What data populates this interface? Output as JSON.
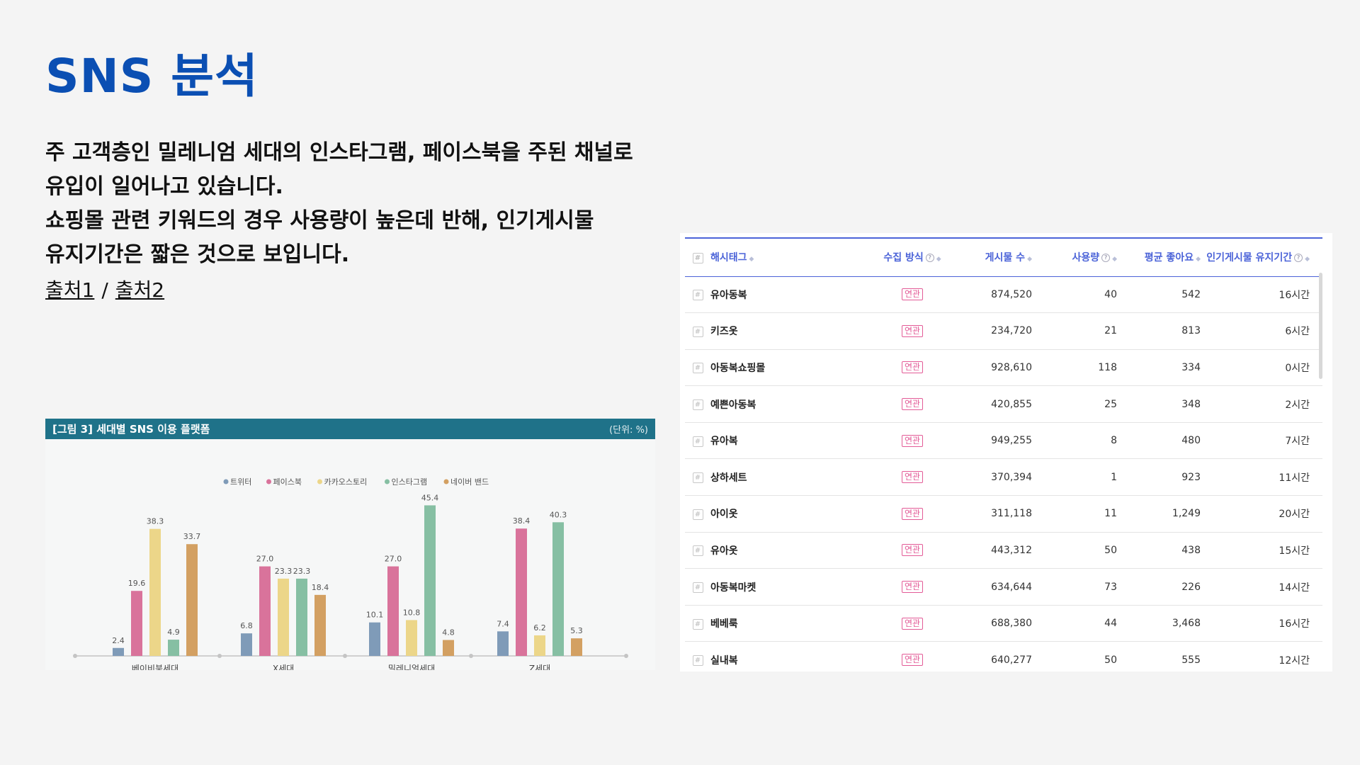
{
  "title": "SNS 분석",
  "description": [
    "주 고객층인 밀레니엄 세대의 인스타그램, 페이스북을 주된 채널로",
    "유입이 일어나고 있습니다.",
    "쇼핑몰 관련 키워드의 경우 사용량이 높은데 반해, 인기게시물",
    "유지기간은 짧은 것으로 보입니다."
  ],
  "sources": {
    "link1": "출처1",
    "separator": "/",
    "link2": "출처2"
  },
  "chart_header": {
    "title": "[그림 3]  세대별 SNS 이용 플랫폼",
    "unit": "(단위: %)"
  },
  "chart_data": {
    "type": "bar",
    "categories": [
      "베이비붐세대",
      "X세대",
      "밀레니얼세대",
      "Z세대"
    ],
    "series": [
      {
        "name": "트위터",
        "color": "#7f9bb8",
        "values": [
          2.4,
          6.8,
          10.1,
          7.4
        ]
      },
      {
        "name": "페이스북",
        "color": "#d9739b",
        "values": [
          19.6,
          27.0,
          27.0,
          38.4
        ]
      },
      {
        "name": "카카오스토리",
        "color": "#ecd689",
        "values": [
          38.3,
          23.3,
          10.8,
          6.2
        ]
      },
      {
        "name": "인스타그램",
        "color": "#86bfa3",
        "values": [
          4.9,
          23.3,
          45.4,
          40.3
        ]
      },
      {
        "name": "네이버 밴드",
        "color": "#d3a062",
        "values": [
          33.7,
          18.4,
          4.8,
          5.3
        ]
      }
    ],
    "legend": "top-center",
    "ylim": [
      0,
      50
    ]
  },
  "table": {
    "headers": {
      "idx": "#",
      "hashtag": "해시태그",
      "method": "수집 방식",
      "posts": "게시물 수",
      "usage": "사용량",
      "likes": "평균 좋아요",
      "duration": "인기게시물 유지기간"
    },
    "rows": [
      {
        "tag": "유아동복",
        "method": "연관",
        "posts": "874,520",
        "usage": "40",
        "likes": "542",
        "duration": "16시간"
      },
      {
        "tag": "키즈옷",
        "method": "연관",
        "posts": "234,720",
        "usage": "21",
        "likes": "813",
        "duration": "6시간"
      },
      {
        "tag": "아동복쇼핑몰",
        "method": "연관",
        "posts": "928,610",
        "usage": "118",
        "likes": "334",
        "duration": "0시간"
      },
      {
        "tag": "예쁜아동복",
        "method": "연관",
        "posts": "420,855",
        "usage": "25",
        "likes": "348",
        "duration": "2시간"
      },
      {
        "tag": "유아복",
        "method": "연관",
        "posts": "949,255",
        "usage": "8",
        "likes": "480",
        "duration": "7시간"
      },
      {
        "tag": "상하세트",
        "method": "연관",
        "posts": "370,394",
        "usage": "1",
        "likes": "923",
        "duration": "11시간"
      },
      {
        "tag": "아이옷",
        "method": "연관",
        "posts": "311,118",
        "usage": "11",
        "likes": "1,249",
        "duration": "20시간"
      },
      {
        "tag": "유아옷",
        "method": "연관",
        "posts": "443,312",
        "usage": "50",
        "likes": "438",
        "duration": "15시간"
      },
      {
        "tag": "아동복마켓",
        "method": "연관",
        "posts": "634,644",
        "usage": "73",
        "likes": "226",
        "duration": "14시간"
      },
      {
        "tag": "베베룩",
        "method": "연관",
        "posts": "688,380",
        "usage": "44",
        "likes": "3,468",
        "duration": "16시간"
      },
      {
        "tag": "실내복",
        "method": "연관",
        "posts": "640,277",
        "usage": "50",
        "likes": "555",
        "duration": "12시간"
      }
    ]
  }
}
